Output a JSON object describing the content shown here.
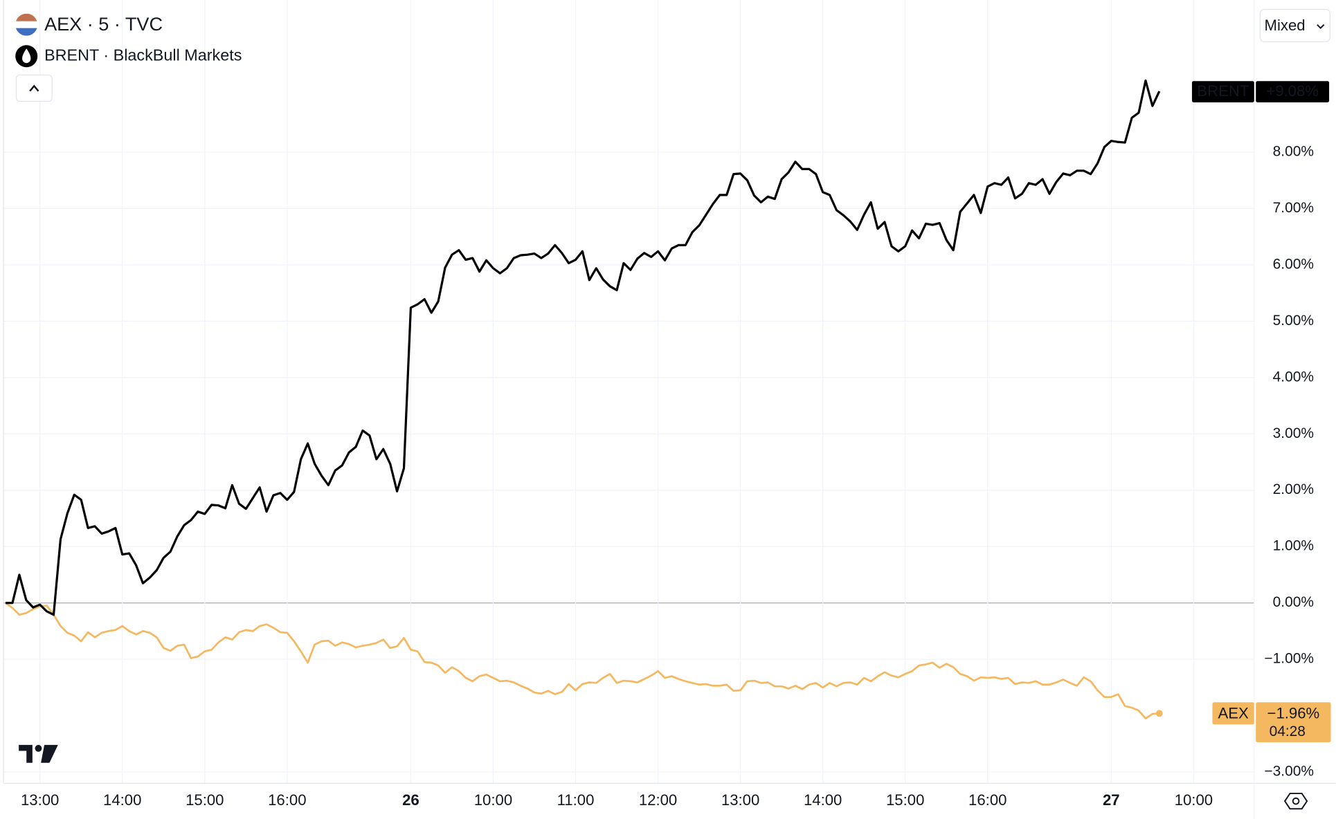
{
  "chart_data": {
    "type": "line",
    "legend": [
      "AEX · 5 · TVC",
      "BRENT · BlackBull Markets"
    ],
    "scale_mode": "Mixed",
    "categories": [
      null,
      null,
      null,
      null,
      null,
      "13:00",
      null,
      null,
      null,
      null,
      null,
      null,
      null,
      null,
      null,
      null,
      null,
      "14:00",
      null,
      null,
      null,
      null,
      null,
      null,
      null,
      null,
      null,
      null,
      null,
      "15:00",
      null,
      null,
      null,
      null,
      null,
      null,
      null,
      null,
      null,
      null,
      null,
      "16:00",
      null,
      null,
      null,
      null,
      null,
      null,
      null,
      null,
      null,
      null,
      null,
      null,
      null,
      null,
      null,
      null,
      null,
      "26",
      null,
      null,
      null,
      null,
      null,
      null,
      null,
      null,
      null,
      null,
      null,
      "10:00",
      null,
      null,
      null,
      null,
      null,
      null,
      null,
      null,
      null,
      null,
      null,
      "11:00",
      null,
      null,
      null,
      null,
      null,
      null,
      null,
      null,
      null,
      null,
      null,
      "12:00",
      null,
      null,
      null,
      null,
      null,
      null,
      null,
      null,
      null,
      null,
      null,
      "13:00",
      null,
      null,
      null,
      null,
      null,
      null,
      null,
      null,
      null,
      null,
      null,
      "14:00",
      null,
      null,
      null,
      null,
      null,
      null,
      null,
      null,
      null,
      null,
      null,
      "15:00",
      null,
      null,
      null,
      null,
      null,
      null,
      null,
      null,
      null,
      null,
      null,
      "16:00",
      null,
      null,
      null,
      null,
      null,
      null,
      null,
      null,
      null,
      null,
      null,
      null,
      null,
      null,
      null,
      null,
      null,
      "27",
      null,
      null,
      null,
      null,
      null,
      null,
      null,
      null,
      null,
      null,
      null,
      "10:00"
    ],
    "series": [
      {
        "name": "BRENT",
        "color": "#000000",
        "values": [
          0,
          0,
          0.5,
          0.05,
          -0.08,
          -0.03,
          -0.15,
          -0.21,
          1.13,
          1.59,
          1.92,
          1.83,
          1.33,
          1.36,
          1.23,
          1.27,
          1.33,
          0.86,
          0.88,
          0.67,
          0.35,
          0.45,
          0.58,
          0.8,
          0.91,
          1.18,
          1.38,
          1.47,
          1.62,
          1.58,
          1.74,
          1.73,
          1.68,
          2.09,
          1.76,
          1.67,
          1.86,
          2.05,
          1.62,
          1.91,
          1.95,
          1.83,
          1.97,
          2.55,
          2.83,
          2.47,
          2.26,
          2.09,
          2.35,
          2.44,
          2.67,
          2.77,
          3.06,
          2.97,
          2.55,
          2.73,
          2.47,
          1.98,
          2.39,
          5.24,
          5.3,
          5.39,
          5.15,
          5.35,
          5.95,
          6.18,
          6.26,
          6.09,
          6.12,
          5.88,
          6.08,
          5.94,
          5.85,
          5.94,
          6.12,
          6.17,
          6.18,
          6.2,
          6.12,
          6.2,
          6.35,
          6.21,
          6.03,
          6.09,
          6.24,
          5.73,
          5.94,
          5.74,
          5.62,
          5.55,
          6.03,
          5.91,
          6.11,
          6.21,
          6.14,
          6.24,
          6.08,
          6.29,
          6.35,
          6.35,
          6.58,
          6.7,
          6.89,
          7.08,
          7.24,
          7.24,
          7.61,
          7.62,
          7.5,
          7.23,
          7.11,
          7.21,
          7.17,
          7.52,
          7.64,
          7.83,
          7.7,
          7.7,
          7.61,
          7.29,
          7.24,
          6.97,
          6.88,
          6.77,
          6.62,
          6.89,
          7.11,
          6.64,
          6.76,
          6.33,
          6.24,
          6.33,
          6.61,
          6.47,
          6.73,
          6.71,
          6.74,
          6.44,
          6.26,
          6.94,
          7.09,
          7.24,
          6.92,
          7.39,
          7.45,
          7.42,
          7.55,
          7.18,
          7.26,
          7.45,
          7.42,
          7.52,
          7.26,
          7.47,
          7.62,
          7.59,
          7.67,
          7.67,
          7.61,
          7.8,
          8.09,
          8.2,
          8.18,
          8.17,
          8.61,
          8.7,
          9.27,
          8.82,
          9.08,
          null,
          null,
          null,
          null,
          null
        ],
        "value_labels": [
          null,
          null,
          null,
          null,
          null,
          null,
          null,
          null,
          null,
          null,
          null,
          null,
          null,
          null,
          null,
          null,
          null,
          null,
          null,
          null,
          null,
          null,
          null,
          null,
          null,
          null,
          null,
          null,
          null,
          null,
          null,
          null,
          null,
          null,
          null,
          null,
          null,
          null,
          null,
          null,
          null,
          null,
          null,
          null,
          null,
          null,
          null,
          null,
          null,
          null,
          null,
          null,
          null,
          null,
          null,
          null,
          null,
          null,
          null,
          null,
          null,
          null,
          null,
          null,
          null,
          null,
          null,
          null,
          null,
          null,
          null,
          null,
          null,
          null,
          null,
          null,
          null,
          null,
          null,
          null,
          null,
          null,
          null,
          null,
          null,
          null,
          null,
          null,
          null,
          null,
          null,
          null,
          null,
          null,
          null,
          null,
          null,
          null,
          null,
          null,
          null,
          null,
          null,
          null,
          null,
          null,
          null,
          null,
          null,
          null,
          null,
          null,
          null,
          null,
          null,
          null,
          null,
          null,
          null,
          null,
          null,
          null,
          null,
          null,
          null,
          null,
          null,
          null,
          null,
          null,
          null,
          null,
          null,
          null,
          null,
          null,
          null,
          null,
          null,
          null,
          null,
          null,
          null,
          null,
          null,
          null,
          null,
          null,
          null,
          null,
          null,
          null,
          null,
          null,
          null,
          null,
          null,
          null,
          null,
          null,
          null,
          null,
          null,
          null,
          null,
          null,
          null,
          null,
          "+9.08%",
          null,
          null,
          null,
          null,
          null
        ]
      },
      {
        "name": "AEX",
        "color": "#f4b860",
        "countdown": "04:28",
        "values": [
          0,
          -0.09,
          -0.21,
          -0.18,
          -0.11,
          -0.06,
          -0.05,
          -0.21,
          -0.41,
          -0.53,
          -0.58,
          -0.68,
          -0.52,
          -0.61,
          -0.53,
          -0.5,
          -0.48,
          -0.41,
          -0.5,
          -0.56,
          -0.5,
          -0.53,
          -0.61,
          -0.8,
          -0.85,
          -0.76,
          -0.74,
          -0.98,
          -0.95,
          -0.86,
          -0.83,
          -0.7,
          -0.61,
          -0.65,
          -0.52,
          -0.48,
          -0.5,
          -0.41,
          -0.38,
          -0.44,
          -0.52,
          -0.53,
          -0.68,
          -0.86,
          -1.06,
          -0.74,
          -0.68,
          -0.67,
          -0.76,
          -0.7,
          -0.73,
          -0.79,
          -0.76,
          -0.74,
          -0.71,
          -0.65,
          -0.8,
          -0.77,
          -0.62,
          -0.83,
          -0.86,
          -1.05,
          -1.06,
          -1.11,
          -1.24,
          -1.14,
          -1.21,
          -1.33,
          -1.39,
          -1.3,
          -1.27,
          -1.33,
          -1.39,
          -1.38,
          -1.41,
          -1.47,
          -1.52,
          -1.59,
          -1.61,
          -1.56,
          -1.62,
          -1.58,
          -1.44,
          -1.55,
          -1.44,
          -1.41,
          -1.42,
          -1.33,
          -1.26,
          -1.42,
          -1.38,
          -1.39,
          -1.41,
          -1.35,
          -1.29,
          -1.21,
          -1.33,
          -1.3,
          -1.35,
          -1.39,
          -1.42,
          -1.45,
          -1.44,
          -1.47,
          -1.47,
          -1.45,
          -1.56,
          -1.55,
          -1.39,
          -1.38,
          -1.42,
          -1.41,
          -1.48,
          -1.48,
          -1.52,
          -1.47,
          -1.53,
          -1.45,
          -1.42,
          -1.5,
          -1.42,
          -1.48,
          -1.42,
          -1.41,
          -1.45,
          -1.33,
          -1.39,
          -1.3,
          -1.23,
          -1.29,
          -1.32,
          -1.26,
          -1.21,
          -1.11,
          -1.09,
          -1.06,
          -1.15,
          -1.08,
          -1.14,
          -1.26,
          -1.3,
          -1.38,
          -1.32,
          -1.33,
          -1.32,
          -1.35,
          -1.33,
          -1.44,
          -1.41,
          -1.42,
          -1.39,
          -1.45,
          -1.45,
          -1.41,
          -1.36,
          -1.42,
          -1.47,
          -1.32,
          -1.39,
          -1.55,
          -1.67,
          -1.67,
          -1.62,
          -1.83,
          -1.86,
          -1.91,
          -2.05,
          -1.97,
          -1.96,
          null,
          null,
          null,
          null,
          null
        ],
        "value_labels": [
          null,
          null,
          null,
          null,
          null,
          null,
          null,
          null,
          null,
          null,
          null,
          null,
          null,
          null,
          null,
          null,
          null,
          null,
          null,
          null,
          null,
          null,
          null,
          null,
          null,
          null,
          null,
          null,
          null,
          null,
          null,
          null,
          null,
          null,
          null,
          null,
          null,
          null,
          null,
          null,
          null,
          null,
          null,
          null,
          null,
          null,
          null,
          null,
          null,
          null,
          null,
          null,
          null,
          null,
          null,
          null,
          null,
          null,
          null,
          null,
          null,
          null,
          null,
          null,
          null,
          null,
          null,
          null,
          null,
          null,
          null,
          null,
          null,
          null,
          null,
          null,
          null,
          null,
          null,
          null,
          null,
          null,
          null,
          null,
          null,
          null,
          null,
          null,
          null,
          null,
          null,
          null,
          null,
          null,
          null,
          null,
          null,
          null,
          null,
          null,
          null,
          null,
          null,
          null,
          null,
          null,
          null,
          null,
          null,
          null,
          null,
          null,
          null,
          null,
          null,
          null,
          null,
          null,
          null,
          null,
          null,
          null,
          null,
          null,
          null,
          null,
          null,
          null,
          null,
          null,
          null,
          null,
          null,
          null,
          null,
          null,
          null,
          null,
          null,
          null,
          null,
          null,
          null,
          null,
          null,
          null,
          null,
          null,
          null,
          null,
          null,
          null,
          null,
          null,
          null,
          null,
          null,
          null,
          null,
          null,
          null,
          null,
          null,
          null,
          null,
          null,
          null,
          null,
          "−1.96%",
          null,
          null,
          null,
          null,
          null
        ]
      }
    ],
    "ylim": [
      -3.2,
      10.7
    ],
    "yticks": [
      {
        "value": 8,
        "label": "8.00%"
      },
      {
        "value": 7,
        "label": "7.00%"
      },
      {
        "value": 6,
        "label": "6.00%"
      },
      {
        "value": 5,
        "label": "5.00%"
      },
      {
        "value": 4,
        "label": "4.00%"
      },
      {
        "value": 3,
        "label": "3.00%"
      },
      {
        "value": 2,
        "label": "2.00%"
      },
      {
        "value": 1,
        "label": "1.00%"
      },
      {
        "value": 0,
        "label": "0.00%"
      },
      {
        "value": -1,
        "label": "−1.00%"
      },
      {
        "value": -3,
        "label": "−3.00%"
      }
    ],
    "grid": true
  }
}
